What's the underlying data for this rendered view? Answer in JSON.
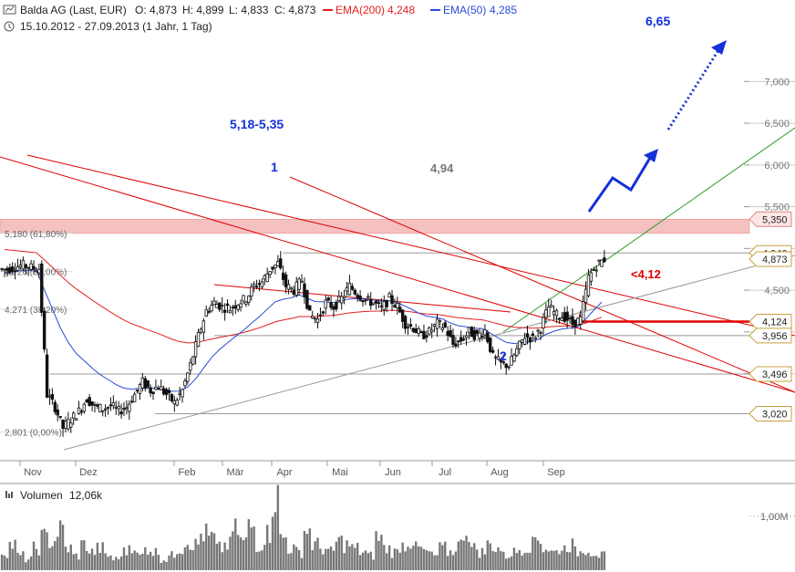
{
  "header": {
    "title": "Balda AG (Last, EUR)",
    "ohlc": {
      "o": "O: 4,873",
      "h": "H: 4,899",
      "l": "L: 4,833",
      "c": "C: 4,873"
    },
    "ema200_label": "EMA(200)",
    "ema200_value": "4,248",
    "ema50_label": "EMA(50)",
    "ema50_value": "4,285",
    "period": "15.10.2012 - 27.09.2013 (1 Jahr, 1 Tag)"
  },
  "colors": {
    "candle": "#111111",
    "ema200": "#e02020",
    "ema50": "#2a4bd7",
    "annotation_blue": "#1530d8",
    "support_red": "#e00000",
    "grid": "#9a9a9a",
    "fib_zone": "#f4b6b6",
    "trend_green": "#2a9a2a",
    "trend_gray": "#999999",
    "volume": "#777777"
  },
  "chart_data": {
    "type": "candlestick",
    "title": "Balda AG (Last, EUR)",
    "period": "15.10.2012 - 27.09.2013",
    "x_ticks": [
      "Nov",
      "Dez",
      "Feb",
      "Mär",
      "Apr",
      "Mai",
      "Jun",
      "Jul",
      "Aug",
      "Sep"
    ],
    "y_ticks": [
      "7,000",
      "6,500",
      "6,000",
      "5,500",
      "5,000",
      "4,500",
      "4,000",
      "3,500"
    ],
    "ylim": [
      2.6,
      7.05
    ],
    "fib_levels": [
      {
        "label": "5,180 (61,80%)",
        "value": 5.18
      },
      {
        "label": "4,726 (50,00%)",
        "value": 4.726
      },
      {
        "label": "4,271 (38,20%)",
        "value": 4.271
      },
      {
        "label": "2,801 (0,00%)",
        "value": 2.801
      }
    ],
    "horizontal_levels": [
      {
        "label": "4,946",
        "value": 4.946
      },
      {
        "label": "3,956",
        "value": 3.956
      },
      {
        "label": "3,496",
        "value": 3.496
      },
      {
        "label": "3,020",
        "value": 3.02
      }
    ],
    "price_tags": [
      {
        "label": "5,350",
        "value": 5.35
      },
      {
        "label": "4,946",
        "value": 4.946
      },
      {
        "label": "4,873",
        "value": 4.873
      },
      {
        "label": "4,124",
        "value": 4.124
      },
      {
        "label": "3,956",
        "value": 3.956
      },
      {
        "label": "3,496",
        "value": 3.496
      },
      {
        "label": "3,020",
        "value": 3.02
      }
    ],
    "annotations": [
      {
        "text": "6,65",
        "value": 6.65
      },
      {
        "text": "5,18-5,35"
      },
      {
        "text": "4,94",
        "value": 4.94
      },
      {
        "text": "<4,12",
        "value": 4.12
      },
      {
        "text": "1"
      },
      {
        "text": "2"
      }
    ],
    "series": [
      {
        "name": "EMA(200)",
        "last": 4.248
      },
      {
        "name": "EMA(50)",
        "last": 4.285
      }
    ],
    "close_path": [
      4.75,
      4.78,
      4.8,
      4.77,
      4.76,
      3.25,
      3.1,
      2.85,
      2.95,
      3.05,
      3.2,
      3.1,
      3.08,
      3.12,
      3.05,
      3.1,
      3.25,
      3.4,
      3.3,
      3.35,
      3.25,
      3.15,
      3.3,
      3.6,
      3.95,
      4.25,
      4.35,
      4.3,
      4.28,
      4.35,
      4.4,
      4.55,
      4.6,
      4.75,
      4.82,
      4.55,
      4.5,
      4.62,
      4.2,
      4.15,
      4.35,
      4.3,
      4.4,
      4.55,
      4.45,
      4.38,
      4.35,
      4.28,
      4.4,
      4.3,
      4.1,
      4.05,
      3.95,
      4.0,
      4.1,
      4.05,
      3.85,
      3.9,
      4.0,
      3.95,
      4.02,
      3.7,
      3.62,
      3.6,
      3.78,
      3.95,
      3.92,
      4.05,
      4.3,
      4.2,
      4.18,
      4.1,
      4.15,
      4.65,
      4.8,
      4.873
    ],
    "volume": {
      "label": "Volumen",
      "last": "12,06k",
      "axis_tick": "1,00M",
      "bars": [
        0.25,
        0.35,
        0.2,
        0.15,
        0.3,
        0.45,
        0.4,
        0.55,
        0.3,
        0.2,
        0.35,
        0.25,
        0.3,
        0.2,
        0.15,
        0.25,
        0.35,
        0.2,
        0.3,
        0.25,
        0.15,
        0.2,
        0.3,
        0.4,
        0.35,
        0.5,
        0.45,
        0.3,
        0.35,
        0.55,
        0.4,
        0.6,
        0.35,
        0.5,
        1.0,
        0.45,
        0.3,
        0.25,
        0.55,
        0.35,
        0.3,
        0.25,
        0.4,
        0.35,
        0.3,
        0.25,
        0.2,
        0.45,
        0.3,
        0.25,
        0.35,
        0.4,
        0.3,
        0.25,
        0.2,
        0.3,
        0.25,
        0.35,
        0.55,
        0.3,
        0.25,
        0.35,
        0.3,
        0.2,
        0.25,
        0.3,
        0.35,
        0.45,
        0.3,
        0.25,
        0.3,
        0.35,
        0.25,
        0.3,
        0.25,
        0.2
      ]
    }
  }
}
